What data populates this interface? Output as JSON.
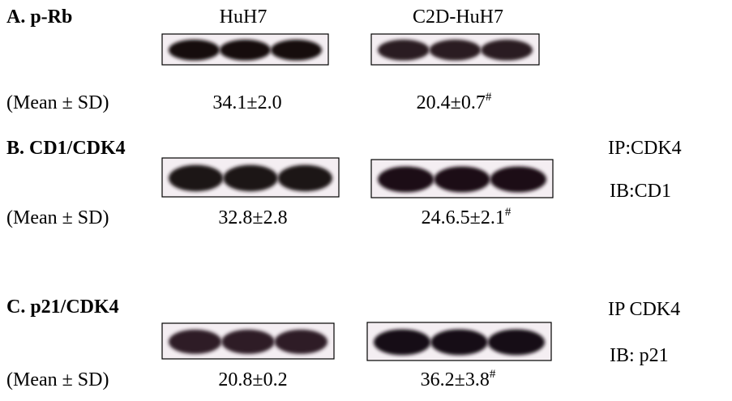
{
  "columns": [
    "HuH7",
    "C2D-HuH7"
  ],
  "panels": [
    {
      "title": "A. p-Rb",
      "row_label": "(Mean ± SD)",
      "values": [
        "34.1±2.0",
        "20.4±0.7"
      ],
      "marker": "#",
      "notes": []
    },
    {
      "title": "B. CD1/CDK4",
      "row_label": "(Mean ± SD)",
      "values": [
        "32.8±2.8",
        "24.6.5±2.1"
      ],
      "marker": "#",
      "notes": [
        "IP:CDK4",
        "IB:CD1"
      ]
    },
    {
      "title": "C. p21/CDK4",
      "row_label": "(Mean ± SD)",
      "values": [
        "20.8±0.2",
        "36.2±3.8"
      ],
      "marker": "#",
      "notes": [
        "IP CDK4",
        "IB: p21"
      ]
    }
  ]
}
